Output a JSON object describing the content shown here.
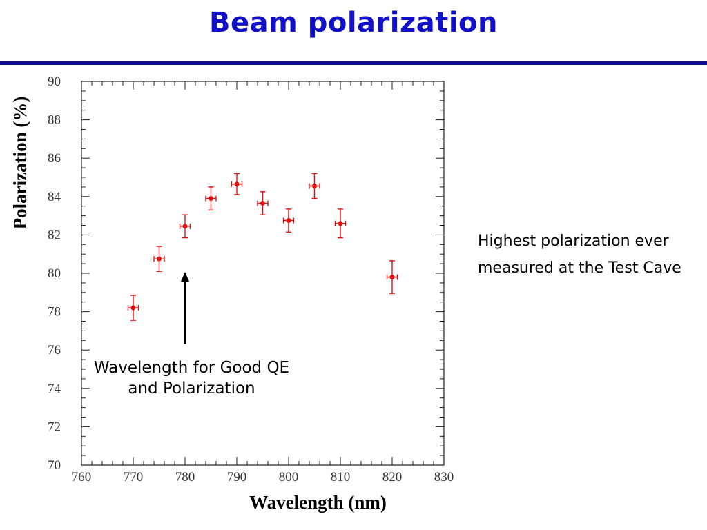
{
  "slide": {
    "title": "Beam polarization",
    "note": "Highest polarization ever measured at the Test Cave",
    "callout": "Wavelength for Good QE and Polarization"
  },
  "colors": {
    "title": "#1010c8",
    "rule": "#10108c",
    "points": "#e01010"
  },
  "chart_data": {
    "type": "scatter",
    "xlabel": "Wavelength (nm)",
    "ylabel": "Polarization (%)",
    "xlim": [
      760,
      830
    ],
    "ylim": [
      70,
      90
    ],
    "xticks": [
      760,
      770,
      780,
      790,
      800,
      810,
      820,
      830
    ],
    "yticks": [
      70,
      72,
      74,
      76,
      78,
      80,
      82,
      84,
      86,
      88,
      90
    ],
    "grid": false,
    "series": [
      {
        "points": [
          {
            "x": 770,
            "y": 78.2,
            "yerr": 0.65,
            "xerr": 1
          },
          {
            "x": 775,
            "y": 80.75,
            "yerr": 0.65,
            "xerr": 1
          },
          {
            "x": 780,
            "y": 82.45,
            "yerr": 0.6,
            "xerr": 1
          },
          {
            "x": 785,
            "y": 83.9,
            "yerr": 0.6,
            "xerr": 1
          },
          {
            "x": 790,
            "y": 84.65,
            "yerr": 0.55,
            "xerr": 1
          },
          {
            "x": 795,
            "y": 83.65,
            "yerr": 0.6,
            "xerr": 1
          },
          {
            "x": 800,
            "y": 82.75,
            "yerr": 0.6,
            "xerr": 1
          },
          {
            "x": 805,
            "y": 84.55,
            "yerr": 0.65,
            "xerr": 1
          },
          {
            "x": 810,
            "y": 82.6,
            "yerr": 0.75,
            "xerr": 1
          },
          {
            "x": 820,
            "y": 79.8,
            "yerr": 0.85,
            "xerr": 1
          }
        ]
      }
    ],
    "annotation": {
      "arrow_x": 780,
      "arrow_y_tip": 80,
      "arrow_y_tail": 76.3
    }
  }
}
